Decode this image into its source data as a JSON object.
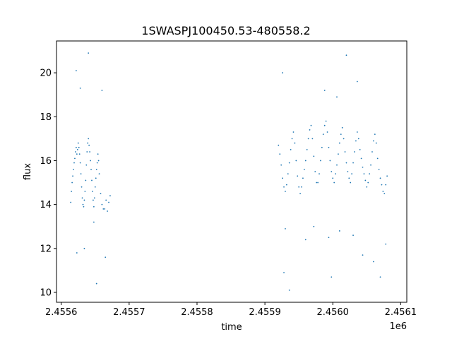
{
  "chart_data": {
    "type": "scatter",
    "title": "1SWASPJ100450.53-480558.2",
    "xlabel": "time",
    "ylabel": "flux",
    "x_offset_label": "1e6",
    "xlim": [
      2455593,
      2456109
    ],
    "ylim": [
      9.55,
      21.45
    ],
    "x_ticks": [
      2455600,
      2455700,
      2455800,
      2455900,
      2456000,
      2456100
    ],
    "x_tick_labels": [
      "2.4556",
      "2.4557",
      "2.4558",
      "2.4559",
      "2.4560",
      "2.4561"
    ],
    "y_ticks": [
      10,
      12,
      14,
      16,
      18,
      20
    ],
    "y_tick_labels": [
      "10",
      "12",
      "14",
      "16",
      "18",
      "20"
    ],
    "grid": false,
    "marker_color": "#1f77b4",
    "series": [
      {
        "points": [
          [
            2455614,
            14.1
          ],
          [
            2455615,
            14.6
          ],
          [
            2455616,
            15.0
          ],
          [
            2455617,
            15.3
          ],
          [
            2455618,
            15.6
          ],
          [
            2455619,
            15.9
          ],
          [
            2455620,
            16.1
          ],
          [
            2455621,
            16.4
          ],
          [
            2455622,
            16.6
          ],
          [
            2455623,
            16.3
          ],
          [
            2455624,
            16.5
          ],
          [
            2455625,
            16.8
          ],
          [
            2455626,
            16.6
          ],
          [
            2455627,
            16.3
          ],
          [
            2455628,
            15.9
          ],
          [
            2455629,
            15.4
          ],
          [
            2455630,
            14.8
          ],
          [
            2455631,
            14.3
          ],
          [
            2455632,
            14.0
          ],
          [
            2455633,
            13.9
          ],
          [
            2455634,
            14.2
          ],
          [
            2455635,
            14.6
          ],
          [
            2455636,
            15.1
          ],
          [
            2455637,
            15.8
          ],
          [
            2455638,
            16.4
          ],
          [
            2455639,
            16.8
          ],
          [
            2455640,
            17.0
          ],
          [
            2455641,
            16.7
          ],
          [
            2455642,
            16.4
          ],
          [
            2455643,
            16.0
          ],
          [
            2455644,
            15.6
          ],
          [
            2455645,
            15.1
          ],
          [
            2455646,
            14.6
          ],
          [
            2455647,
            14.2
          ],
          [
            2455648,
            13.9
          ],
          [
            2455649,
            14.3
          ],
          [
            2455650,
            14.8
          ],
          [
            2455651,
            15.2
          ],
          [
            2455652,
            15.6
          ],
          [
            2455653,
            15.9
          ],
          [
            2455654,
            16.3
          ],
          [
            2455655,
            16.0
          ],
          [
            2455656,
            15.4
          ],
          [
            2455658,
            14.5
          ],
          [
            2455660,
            14.0
          ],
          [
            2455662,
            13.8
          ],
          [
            2455664,
            13.8
          ],
          [
            2455666,
            14.2
          ],
          [
            2455668,
            13.7
          ],
          [
            2455670,
            14.1
          ],
          [
            2455672,
            14.4
          ],
          [
            2455634,
            12.0
          ],
          [
            2455648,
            13.2
          ],
          [
            2455623,
            11.8
          ],
          [
            2455665,
            11.6
          ],
          [
            2455628,
            19.3
          ],
          [
            2455622,
            20.1
          ],
          [
            2455640,
            20.9
          ],
          [
            2455660,
            19.2
          ],
          [
            2455652,
            10.4
          ],
          [
            2455920,
            16.7
          ],
          [
            2455922,
            16.3
          ],
          [
            2455924,
            15.8
          ],
          [
            2455926,
            15.2
          ],
          [
            2455928,
            14.8
          ],
          [
            2455930,
            14.6
          ],
          [
            2455932,
            14.9
          ],
          [
            2455934,
            15.4
          ],
          [
            2455936,
            15.9
          ],
          [
            2455938,
            16.5
          ],
          [
            2455940,
            17.0
          ],
          [
            2455942,
            17.3
          ],
          [
            2455944,
            16.8
          ],
          [
            2455946,
            16.0
          ],
          [
            2455948,
            15.3
          ],
          [
            2455950,
            14.8
          ],
          [
            2455952,
            14.5
          ],
          [
            2455954,
            14.8
          ],
          [
            2455956,
            15.2
          ],
          [
            2455958,
            15.6
          ],
          [
            2455960,
            16.0
          ],
          [
            2455962,
            16.5
          ],
          [
            2455964,
            17.0
          ],
          [
            2455966,
            17.4
          ],
          [
            2455968,
            17.6
          ],
          [
            2455970,
            17.0
          ],
          [
            2455972,
            16.2
          ],
          [
            2455974,
            15.5
          ],
          [
            2455976,
            15.0
          ],
          [
            2455978,
            15.0
          ],
          [
            2455980,
            15.4
          ],
          [
            2455982,
            16.0
          ],
          [
            2455984,
            16.6
          ],
          [
            2455986,
            17.2
          ],
          [
            2455988,
            17.6
          ],
          [
            2455990,
            17.8
          ],
          [
            2455992,
            17.3
          ],
          [
            2455994,
            16.6
          ],
          [
            2455996,
            16.0
          ],
          [
            2455998,
            15.5
          ],
          [
            2456000,
            15.2
          ],
          [
            2456002,
            15.0
          ],
          [
            2456004,
            15.4
          ],
          [
            2456006,
            15.8
          ],
          [
            2456008,
            16.3
          ],
          [
            2456010,
            16.8
          ],
          [
            2456012,
            17.2
          ],
          [
            2456014,
            17.5
          ],
          [
            2456016,
            17.0
          ],
          [
            2456018,
            16.4
          ],
          [
            2456020,
            15.9
          ],
          [
            2456022,
            15.5
          ],
          [
            2456024,
            15.2
          ],
          [
            2456026,
            15.0
          ],
          [
            2456028,
            15.4
          ],
          [
            2456030,
            15.9
          ],
          [
            2456032,
            16.4
          ],
          [
            2456034,
            16.9
          ],
          [
            2456036,
            17.3
          ],
          [
            2456038,
            17.0
          ],
          [
            2456040,
            16.5
          ],
          [
            2456042,
            16.1
          ],
          [
            2456044,
            15.7
          ],
          [
            2456046,
            15.4
          ],
          [
            2456048,
            15.1
          ],
          [
            2456050,
            14.8
          ],
          [
            2456052,
            15.0
          ],
          [
            2456054,
            15.4
          ],
          [
            2456056,
            15.8
          ],
          [
            2456058,
            16.4
          ],
          [
            2456060,
            16.9
          ],
          [
            2456062,
            17.2
          ],
          [
            2456064,
            16.8
          ],
          [
            2456066,
            16.1
          ],
          [
            2456068,
            15.6
          ],
          [
            2456070,
            15.2
          ],
          [
            2456072,
            14.9
          ],
          [
            2456074,
            14.6
          ],
          [
            2456076,
            14.5
          ],
          [
            2456078,
            14.9
          ],
          [
            2456080,
            15.3
          ],
          [
            2455930,
            12.9
          ],
          [
            2455928,
            10.9
          ],
          [
            2455936,
            10.1
          ],
          [
            2455960,
            12.4
          ],
          [
            2455972,
            13.0
          ],
          [
            2455994,
            12.5
          ],
          [
            2456010,
            12.8
          ],
          [
            2456030,
            12.6
          ],
          [
            2456044,
            11.7
          ],
          [
            2456060,
            11.4
          ],
          [
            2456070,
            10.7
          ],
          [
            2456078,
            12.2
          ],
          [
            2455998,
            10.7
          ],
          [
            2456020,
            20.8
          ],
          [
            2456036,
            19.6
          ],
          [
            2456006,
            18.9
          ],
          [
            2455988,
            19.2
          ],
          [
            2455926,
            20.0
          ]
        ]
      }
    ]
  }
}
